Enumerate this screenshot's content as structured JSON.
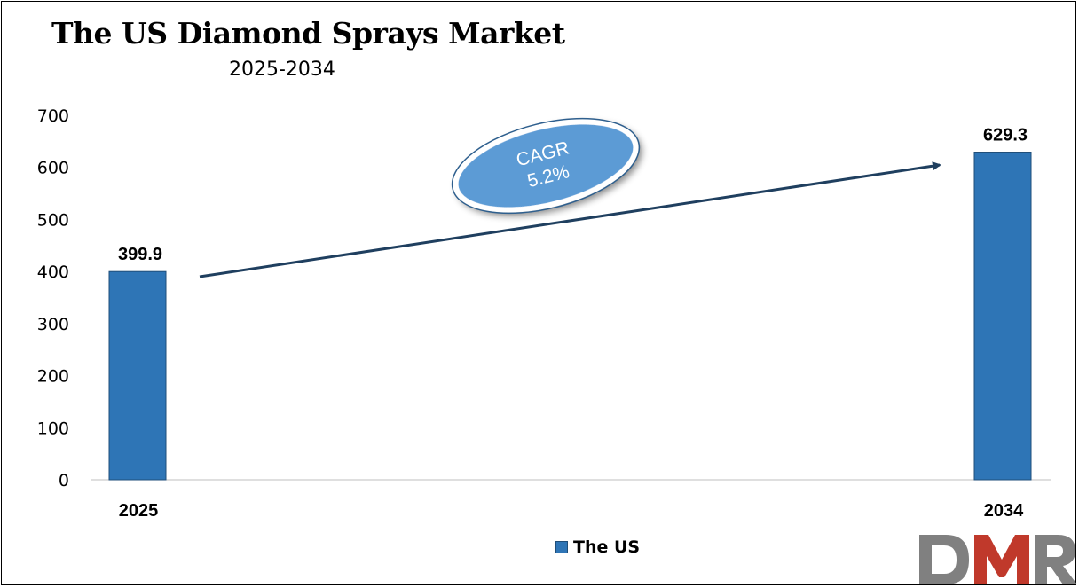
{
  "title": "The US Diamond Sprays Market",
  "subtitle": "2025-2034",
  "legend_label": "The US",
  "cagr": {
    "label": "CAGR",
    "value": "5.2%"
  },
  "logo_text": "DMR",
  "colors": {
    "bar": "#2e75b6",
    "bar_edge": "#1f4e79",
    "ellipse": "#5b9bd5",
    "arrow": "#1f3f5f",
    "logo_gray": "#808080",
    "logo_red": "#c0392b"
  },
  "chart_data": {
    "type": "bar",
    "categories": [
      "2025",
      "2034"
    ],
    "series": [
      {
        "name": "The US",
        "values": [
          399.9,
          629.3
        ]
      }
    ],
    "data_labels": [
      "399.9",
      "629.3"
    ],
    "ylim": [
      0,
      700
    ],
    "yticks": [
      0,
      100,
      200,
      300,
      400,
      500,
      600,
      700
    ],
    "grid": false,
    "legend": "bottom"
  }
}
